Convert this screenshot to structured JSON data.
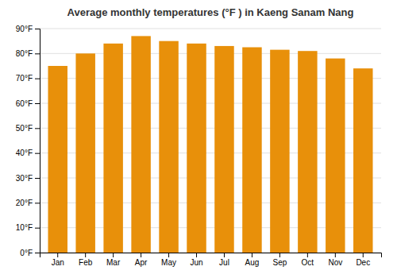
{
  "chart_data": {
    "type": "bar",
    "title": "Average monthly temperatures (°F ) in Kaeng Sanam Nang",
    "categories": [
      "Jan",
      "Feb",
      "Mar",
      "Apr",
      "May",
      "Jun",
      "Jul",
      "Aug",
      "Sep",
      "Oct",
      "Nov",
      "Dec"
    ],
    "values": [
      75,
      80,
      84,
      87,
      85,
      84,
      83,
      82.5,
      81.5,
      81,
      78,
      74
    ],
    "color": "#E8900A",
    "ylim": [
      0,
      90
    ],
    "yticks": [
      {
        "value": 0,
        "label": "0°F"
      },
      {
        "value": 10,
        "label": "10°F"
      },
      {
        "value": 20,
        "label": "20°F"
      },
      {
        "value": 30,
        "label": "30°F"
      },
      {
        "value": 40,
        "label": "40°F"
      },
      {
        "value": 50,
        "label": "50°F"
      },
      {
        "value": 60,
        "label": "60°F"
      },
      {
        "value": 70,
        "label": "70°F"
      },
      {
        "value": 80,
        "label": "80°F"
      },
      {
        "value": 90,
        "label": "90°F"
      }
    ],
    "grid": true
  }
}
